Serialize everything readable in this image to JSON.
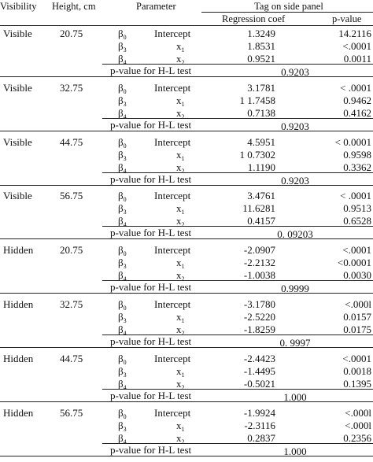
{
  "header": {
    "visibility": "Visibility",
    "height": "Height, cm",
    "parameter": "Parameter",
    "tag": "Tag on side panel",
    "coef": "Regression coef",
    "pvalue": "p-value"
  },
  "param_labels": {
    "b0": "β",
    "b3": "β",
    "b4": "β",
    "b0_sub": "0",
    "b3_sub": "3",
    "b4_sub": "4",
    "intercept": "Intercept",
    "x1": "x",
    "x1_sub": "1",
    "x2": "x",
    "x2_sub": "2",
    "hl": "p-value for H-L test"
  },
  "groups": [
    {
      "visibility": "Visible",
      "height": "20.75",
      "rows": [
        {
          "coef": "1.3249",
          "p": "14.2116"
        },
        {
          "coef": "1.8531",
          "p": "<.0001"
        },
        {
          "coef": "0.9521",
          "p": "0.0011"
        }
      ],
      "hl": "0.9203"
    },
    {
      "visibility": "Visible",
      "height": "32.75",
      "rows": [
        {
          "coef": "3.1781",
          "p": "< .0001"
        },
        {
          "coef": "1 1.7458",
          "p": "0.9462"
        },
        {
          "coef": "0.7138",
          "p": "0.4162"
        }
      ],
      "hl": "0.9203"
    },
    {
      "visibility": "Visible",
      "height": "44.75",
      "rows": [
        {
          "coef": "4.5951",
          "p": "< 0.0001"
        },
        {
          "coef": "1 0.7302",
          "p": "0.9598"
        },
        {
          "coef": "1.1190",
          "p": "0.3362"
        }
      ],
      "hl": "0.9203"
    },
    {
      "visibility": "Visible",
      "height": "56.75",
      "rows": [
        {
          "coef": "3.4761",
          "p": "< .0001"
        },
        {
          "coef": "11.6281",
          "p": "0.9513"
        },
        {
          "coef": "0.4157",
          "p": "0.6528"
        }
      ],
      "hl": "0. 09203"
    },
    {
      "visibility": "Hidden",
      "height": "20.75",
      "rows": [
        {
          "coef": "-2.0907",
          "p": "<.0001"
        },
        {
          "coef": "-2.2132",
          "p": "<0.0001"
        },
        {
          "coef": "-1.0038",
          "p": "0.0030"
        }
      ],
      "hl": "0.9999"
    },
    {
      "visibility": "Hidden",
      "height": "32.75",
      "rows": [
        {
          "coef": "-3.1780",
          "p": "<.000l"
        },
        {
          "coef": "-2.5220",
          "p": "0.0157"
        },
        {
          "coef": "-1.8259",
          "p": "0.0175"
        }
      ],
      "hl": "0. 9997"
    },
    {
      "visibility": "Hidden",
      "height": "44.75",
      "rows": [
        {
          "coef": "-2.4423",
          "p": "<.0001"
        },
        {
          "coef": "-1.4495",
          "p": "0.0018"
        },
        {
          "coef": "-0.5021",
          "p": "0.1395"
        }
      ],
      "hl": "1.000"
    },
    {
      "visibility": "Hidden",
      "height": "56.75",
      "rows": [
        {
          "coef": "-1.9924",
          "p": "<.000l"
        },
        {
          "coef": "-2.3116",
          "p": "<.000l"
        },
        {
          "coef": "0.2837",
          "p": "0.2356"
        }
      ],
      "hl": "1.000"
    }
  ]
}
